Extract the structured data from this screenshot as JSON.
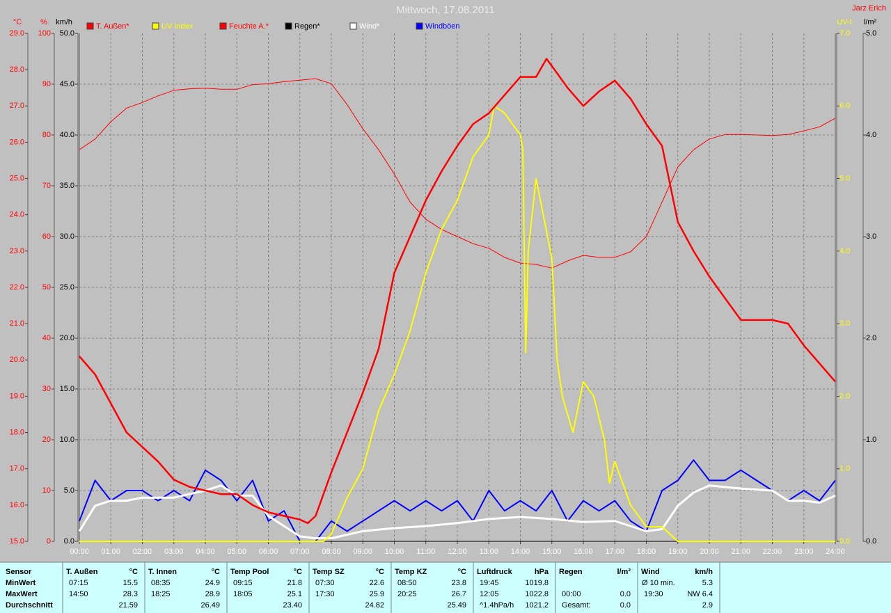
{
  "chart_data": {
    "type": "line",
    "title": "Mittwoch, 17.08.2011",
    "author": "Jarz Erich",
    "grid": true,
    "xlim": [
      0,
      24
    ],
    "xticks": [
      {
        "value": 0,
        "label": "00:00"
      },
      {
        "value": 1,
        "label": "01:00"
      },
      {
        "value": 2,
        "label": "02:00"
      },
      {
        "value": 3,
        "label": "03:00"
      },
      {
        "value": 4,
        "label": "04:00"
      },
      {
        "value": 5,
        "label": "05:00"
      },
      {
        "value": 6,
        "label": "06:00"
      },
      {
        "value": 7,
        "label": "07:00"
      },
      {
        "value": 8,
        "label": "08:00"
      },
      {
        "value": 9,
        "label": "09:00"
      },
      {
        "value": 10,
        "label": "10:00"
      },
      {
        "value": 11,
        "label": "11:00"
      },
      {
        "value": 12,
        "label": "12:00"
      },
      {
        "value": 13,
        "label": "13:00"
      },
      {
        "value": 14,
        "label": "14:00"
      },
      {
        "value": 15,
        "label": "15:00"
      },
      {
        "value": 16,
        "label": "16:00"
      },
      {
        "value": 17,
        "label": "17:00"
      },
      {
        "value": 18,
        "label": "18:00"
      },
      {
        "value": 19,
        "label": "19:00"
      },
      {
        "value": 20,
        "label": "20:00"
      },
      {
        "value": 21,
        "label": "21:00"
      },
      {
        "value": 22,
        "label": "22:00"
      },
      {
        "value": 23,
        "label": "23:00"
      },
      {
        "value": 24,
        "label": "24:00"
      }
    ],
    "y_axes": [
      {
        "label": "°C",
        "color": "#ff0000",
        "ylim": [
          15,
          29
        ],
        "yticks": [
          {
            "value": 15,
            "label": "15.0"
          },
          {
            "value": 16,
            "label": "16.0"
          },
          {
            "value": 17,
            "label": "17.0"
          },
          {
            "value": 18,
            "label": "18.0"
          },
          {
            "value": 19,
            "label": "19.0"
          },
          {
            "value": 20,
            "label": "20.0"
          },
          {
            "value": 21,
            "label": "21.0"
          },
          {
            "value": 22,
            "label": "22.0"
          },
          {
            "value": 23,
            "label": "23.0"
          },
          {
            "value": 24,
            "label": "24.0"
          },
          {
            "value": 25,
            "label": "25.0"
          },
          {
            "value": 26,
            "label": "26.0"
          },
          {
            "value": 27,
            "label": "27.0"
          },
          {
            "value": 28,
            "label": "28.0"
          },
          {
            "value": 29,
            "label": "29.0"
          }
        ]
      },
      {
        "label": "%",
        "color": "#ff0000",
        "ylim": [
          0,
          100
        ],
        "yticks": [
          0,
          10,
          20,
          30,
          40,
          50,
          60,
          70,
          80,
          90,
          100
        ]
      },
      {
        "label": "km/h",
        "color": "#000000",
        "grid": true,
        "ylim": [
          0,
          50
        ],
        "yticks": [
          {
            "value": 0,
            "label": "0.0"
          },
          {
            "value": 5,
            "label": "5.0"
          },
          {
            "value": 10,
            "label": "10.0"
          },
          {
            "value": 15,
            "label": "15.0"
          },
          {
            "value": 20,
            "label": "20.0"
          },
          {
            "value": 25,
            "label": "25.0"
          },
          {
            "value": 30,
            "label": "30.0"
          },
          {
            "value": 35,
            "label": "35.0"
          },
          {
            "value": 40,
            "label": "40.0"
          },
          {
            "value": 45,
            "label": "45.0"
          },
          {
            "value": 50,
            "label": "50.0"
          }
        ]
      },
      {
        "label": "UV-I",
        "color": "#ffff00",
        "ylim": [
          0,
          7
        ],
        "yticks": [
          {
            "value": 0,
            "label": "0.0"
          },
          {
            "value": 1,
            "label": "1.0"
          },
          {
            "value": 2,
            "label": "2.0"
          },
          {
            "value": 3,
            "label": "3.0"
          },
          {
            "value": 4,
            "label": "4.0"
          },
          {
            "value": 5,
            "label": "5.0"
          },
          {
            "value": 6,
            "label": "6.0"
          },
          {
            "value": 7,
            "label": "7.0"
          }
        ]
      },
      {
        "label": "l/m²",
        "color": "#000000",
        "ylim": [
          0,
          5
        ],
        "yticks": [
          {
            "value": 0,
            "label": "0.0"
          },
          {
            "value": 1,
            "label": "1.0"
          },
          {
            "value": 2,
            "label": "2.0"
          },
          {
            "value": 3,
            "label": "3.0"
          },
          {
            "value": 4,
            "label": "4.0"
          },
          {
            "value": 5,
            "label": "5.0"
          }
        ]
      }
    ],
    "series": [
      {
        "name": "T. Außen*",
        "color": "#ff0000",
        "axis": 0,
        "width": 2.5,
        "x": [
          0,
          0.5,
          1,
          1.5,
          2,
          2.5,
          3,
          3.5,
          4,
          4.5,
          5,
          5.5,
          6,
          6.5,
          7,
          7.25,
          7.5,
          8,
          8.5,
          9,
          9.5,
          10,
          10.5,
          11,
          11.5,
          12,
          12.5,
          13,
          13.5,
          14,
          14.5,
          14.83,
          15,
          15.5,
          16,
          16.5,
          17,
          17.5,
          18,
          18.5,
          19,
          19.5,
          20,
          20.5,
          21,
          21.5,
          22,
          22.5,
          23,
          23.5,
          24
        ],
        "values": [
          20.1,
          19.6,
          18.8,
          18.0,
          17.6,
          17.2,
          16.7,
          16.5,
          16.4,
          16.3,
          16.3,
          16.0,
          15.8,
          15.7,
          15.6,
          15.5,
          15.7,
          16.9,
          18.0,
          19.1,
          20.3,
          22.4,
          23.4,
          24.4,
          25.2,
          25.9,
          26.5,
          26.8,
          27.3,
          27.8,
          27.8,
          28.3,
          28.1,
          27.5,
          27.0,
          27.4,
          27.7,
          27.2,
          26.5,
          25.9,
          23.8,
          23.0,
          22.3,
          21.7,
          21.1,
          21.1,
          21.1,
          21.0,
          20.4,
          19.9,
          19.4
        ]
      },
      {
        "name": "UV Index",
        "color": "#ffff00",
        "axis": 3,
        "width": 2,
        "x": [
          0,
          7.75,
          8,
          8.5,
          9,
          9.5,
          10,
          10.5,
          11,
          11.5,
          12,
          12.5,
          13,
          13.17,
          13.5,
          14,
          14.08,
          14.17,
          14.25,
          14.5,
          15,
          15.17,
          15.33,
          15.67,
          16,
          16.33,
          16.67,
          16.83,
          17,
          17.5,
          18,
          18.5,
          19,
          24
        ],
        "values": [
          0,
          0,
          0.1,
          0.6,
          1.0,
          1.8,
          2.3,
          2.9,
          3.7,
          4.3,
          4.7,
          5.3,
          5.6,
          6.0,
          5.9,
          5.6,
          5.4,
          2.6,
          4.0,
          5.0,
          3.9,
          2.5,
          2.0,
          1.5,
          2.2,
          2.0,
          1.4,
          0.8,
          1.1,
          0.5,
          0.2,
          0.2,
          0,
          0
        ]
      },
      {
        "name": "Feuchte A.*",
        "color": "#ff0000",
        "axis": 1,
        "width": 1,
        "x": [
          0,
          0.5,
          1,
          1.5,
          2,
          2.5,
          3,
          3.5,
          4,
          4.5,
          5,
          5.5,
          6,
          6.5,
          7,
          7.5,
          8,
          8.5,
          9,
          9.5,
          10,
          10.5,
          11,
          11.5,
          12,
          12.5,
          13,
          13.5,
          14,
          14.5,
          15,
          15.5,
          16,
          16.5,
          17,
          17.5,
          18,
          18.5,
          19,
          19.5,
          20,
          20.5,
          21,
          21.5,
          22,
          22.5,
          23,
          23.5,
          24
        ],
        "values": [
          77.1,
          79.2,
          82.6,
          85.3,
          86.4,
          87.7,
          88.8,
          89.1,
          89.2,
          89.0,
          89.0,
          89.9,
          90.1,
          90.5,
          90.8,
          91.1,
          90.1,
          86.0,
          81.2,
          77.1,
          72.3,
          66.8,
          63.4,
          61.4,
          60.0,
          58.6,
          57.7,
          55.9,
          54.8,
          54.5,
          53.8,
          55.2,
          56.3,
          55.9,
          55.9,
          57.0,
          60.0,
          66.8,
          73.7,
          77.1,
          79.2,
          80.1,
          80.1,
          80.0,
          79.9,
          80.1,
          80.8,
          81.6,
          83.3
        ]
      },
      {
        "name": "Regen*",
        "color": "#000000",
        "axis": 4,
        "width": 1,
        "x": [
          0,
          24
        ],
        "values": [
          0,
          0
        ]
      },
      {
        "name": "Wind*",
        "color": "#ffffff",
        "axis": 2,
        "width": 3,
        "x": [
          0,
          0.5,
          1,
          1.5,
          2,
          3,
          4,
          4.5,
          5,
          5.5,
          6,
          6.5,
          7,
          7.5,
          8,
          9,
          10,
          11,
          12,
          13,
          14,
          15,
          16,
          17,
          18,
          18.5,
          19,
          19.5,
          20,
          21,
          22,
          22.5,
          23,
          23.5,
          24
        ],
        "values": [
          1.0,
          3.5,
          4.0,
          4.0,
          4.3,
          4.3,
          5.0,
          5.5,
          4.5,
          4.5,
          2.5,
          1.5,
          0.5,
          0.3,
          0.3,
          1.0,
          1.3,
          1.5,
          1.8,
          2.2,
          2.4,
          2.2,
          1.9,
          2.0,
          1.0,
          1.2,
          3.5,
          4.8,
          5.5,
          5.2,
          5.0,
          4.0,
          4.0,
          3.8,
          4.5
        ]
      },
      {
        "name": "Windböen",
        "color": "#0000ff",
        "axis": 2,
        "width": 2,
        "x": [
          0,
          0.5,
          1,
          1.5,
          2,
          2.5,
          3,
          3.5,
          4,
          4.5,
          5,
          5.5,
          6,
          6.5,
          7,
          7.5,
          8,
          8.5,
          9,
          9.5,
          10,
          10.5,
          11,
          11.5,
          12,
          12.5,
          13,
          13.5,
          14,
          14.5,
          15,
          15.5,
          16,
          16.5,
          17,
          17.5,
          18,
          18.5,
          19,
          19.5,
          20,
          20.5,
          21,
          21.5,
          22,
          22.5,
          23,
          23.5,
          24
        ],
        "values": [
          2,
          6,
          4,
          5,
          5,
          4,
          5,
          4,
          7,
          6,
          4,
          6,
          2,
          3,
          0,
          0,
          2,
          1,
          2,
          3,
          4,
          3,
          4,
          3,
          4,
          2,
          5,
          3,
          4,
          3,
          5,
          2,
          4,
          3,
          4,
          2,
          1,
          5,
          6,
          8,
          6,
          6,
          7,
          6,
          5,
          4,
          5,
          4,
          6
        ]
      }
    ]
  },
  "table": {
    "row_labels": [
      "Sensor",
      "MinWert",
      "MaxWert",
      "Durchschnitt"
    ],
    "groups": [
      {
        "name": "T. Außen",
        "unit": "°C",
        "rows": [
          {
            "time": "07:15",
            "value": "15.5"
          },
          {
            "time": "14:50",
            "value": "28.3"
          },
          {
            "value": "21.59"
          }
        ]
      },
      {
        "name": "T. Innen",
        "unit": "°C",
        "rows": [
          {
            "time": "08:35",
            "value": "24.9"
          },
          {
            "time": "18:25",
            "value": "28.9"
          },
          {
            "value": "26.49"
          }
        ]
      },
      {
        "name": "Temp Pool",
        "unit": "°C",
        "rows": [
          {
            "time": "09:15",
            "value": "21.8"
          },
          {
            "time": "18:05",
            "value": "25.1"
          },
          {
            "value": "23.40"
          }
        ]
      },
      {
        "name": "Temp SZ",
        "unit": "°C",
        "rows": [
          {
            "time": "07:30",
            "value": "22.6"
          },
          {
            "time": "17:30",
            "value": "25.9"
          },
          {
            "value": "24.82"
          }
        ]
      },
      {
        "name": "Temp KZ",
        "unit": "°C",
        "rows": [
          {
            "time": "08:50",
            "value": "23.8"
          },
          {
            "time": "20:25",
            "value": "26.7"
          },
          {
            "value": "25.49"
          }
        ]
      },
      {
        "name": "Luftdruck",
        "unit": "hPa",
        "rows": [
          {
            "time": "19:45",
            "value": "1019.8"
          },
          {
            "time": "12:05",
            "value": "1022.8"
          },
          {
            "time": "^1.4hPa/h",
            "value": "1021.2"
          }
        ]
      },
      {
        "name": "Regen",
        "unit": "l/m²",
        "rows": [
          null,
          {
            "time": "00:00",
            "value": "0.0"
          },
          {
            "time": "Gesamt:",
            "value": "0.0"
          }
        ]
      },
      {
        "name": "Wind",
        "unit": "km/h",
        "rows": [
          {
            "time": "Ø 10 min.",
            "value": "5.3"
          },
          {
            "time": "19:30",
            "value": "NW 6.4"
          },
          {
            "value": "2.9"
          }
        ]
      }
    ]
  }
}
